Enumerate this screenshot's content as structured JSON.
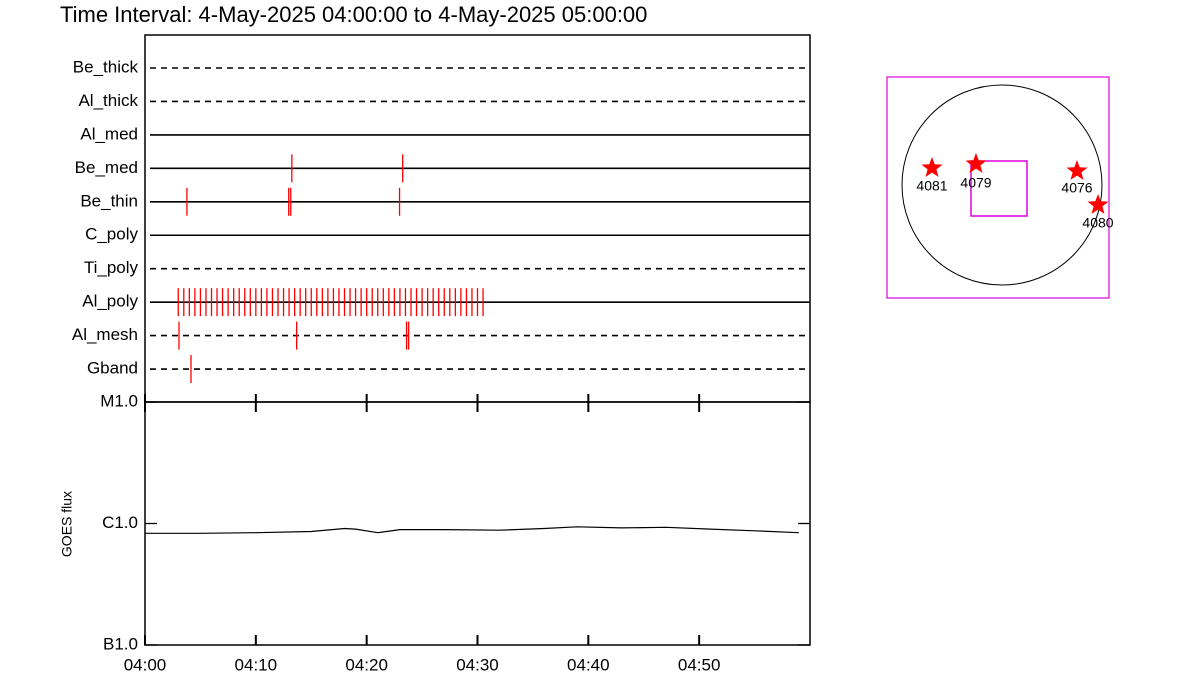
{
  "title": "Time Interval:  4-May-2025 04:00:00 to  4-May-2025 05:00:00",
  "chart_data": [
    {
      "type": "timeline",
      "categories": [
        "Be_thick",
        "Al_thick",
        "Al_med",
        "Be_med",
        "Be_thin",
        "C_poly",
        "Ti_poly",
        "Al_poly",
        "Al_mesh",
        "Gband"
      ],
      "line_styles": [
        "dashed",
        "dashed",
        "solid",
        "solid",
        "solid",
        "solid",
        "dashed",
        "solid",
        "dashed",
        "dashed"
      ],
      "events": [
        [],
        [],
        [],
        [
          "04:13:15",
          "04:23:15"
        ],
        [
          "04:03:47",
          "04:12:58",
          "04:13:09",
          "04:22:58"
        ],
        [],
        [],
        [
          "04:03:00",
          "04:03:30",
          "04:04:00",
          "04:04:30",
          "04:05:00",
          "04:05:30",
          "04:06:00",
          "04:06:30",
          "04:07:00",
          "04:07:30",
          "04:08:00",
          "04:08:30",
          "04:09:00",
          "04:09:30",
          "04:10:00",
          "04:10:30",
          "04:11:00",
          "04:11:30",
          "04:12:00",
          "04:12:30",
          "04:13:00",
          "04:13:30",
          "04:14:00",
          "04:14:30",
          "04:15:00",
          "04:15:30",
          "04:16:00",
          "04:16:30",
          "04:17:00",
          "04:17:30",
          "04:18:00",
          "04:18:30",
          "04:19:00",
          "04:19:30",
          "04:20:00",
          "04:20:30",
          "04:21:00",
          "04:21:30",
          "04:22:00",
          "04:22:30",
          "04:23:00",
          "04:23:30",
          "04:24:00",
          "04:24:30",
          "04:25:00",
          "04:25:30",
          "04:26:00",
          "04:26:30",
          "04:27:00",
          "04:27:30",
          "04:28:00",
          "04:28:30",
          "04:29:00",
          "04:29:30",
          "04:30:00",
          "04:30:30"
        ],
        [
          "04:03:04",
          "04:13:41",
          "04:23:36",
          "04:23:47"
        ],
        [
          "04:04:09"
        ]
      ],
      "color": "#ff0000",
      "xlim": [
        "04:00",
        "05:00"
      ]
    },
    {
      "type": "line",
      "ylabel": "GOES flux",
      "x": [
        "04:00",
        "04:05",
        "04:10",
        "04:15",
        "04:18",
        "04:19",
        "04:21",
        "04:23",
        "04:27",
        "04:32",
        "04:36",
        "04:39",
        "04:43",
        "04:47",
        "04:51",
        "04:55",
        "04:59"
      ],
      "values": [
        8.3e-07,
        8.3e-07,
        8.4e-07,
        8.6e-07,
        9.1e-07,
        9e-07,
        8.4e-07,
        8.9e-07,
        8.9e-07,
        8.8e-07,
        9.1e-07,
        9.4e-07,
        9.2e-07,
        9.3e-07,
        9e-07,
        8.7e-07,
        8.4e-07
      ],
      "color": "#000000",
      "log_scale": true,
      "xlim": [
        "04:00",
        "05:00"
      ],
      "xticks": [
        "04:00",
        "04:10",
        "04:20",
        "04:30",
        "04:40",
        "04:50"
      ],
      "ylim": [
        1e-07,
        1e-05
      ],
      "yticks": [
        {
          "value": 1e-07,
          "label": "B1.0"
        },
        {
          "value": 1e-06,
          "label": "C1.0"
        },
        {
          "value": 1e-05,
          "label": "M1.0"
        }
      ]
    }
  ],
  "map": {
    "regions": [
      "4081",
      "4079",
      "4076",
      "4080"
    ]
  }
}
